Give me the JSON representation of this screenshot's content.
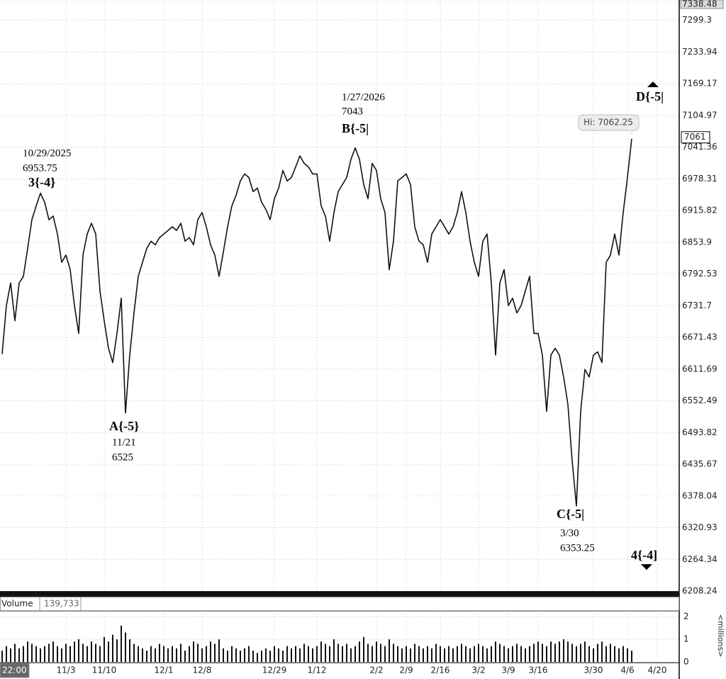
{
  "chart_data": {
    "type": "line",
    "log_scale": true,
    "grid": true,
    "color": "#111111",
    "ylim": [
      6208.24,
      7338.48
    ],
    "yticks": [
      7338.48,
      7299.3,
      7233.94,
      7169.17,
      7104.97,
      7041.36,
      6978.31,
      6915.82,
      6853.9,
      6792.53,
      6731.7,
      6671.43,
      6611.69,
      6552.49,
      6493.82,
      6435.67,
      6378.04,
      6320.93,
      6264.34,
      6208.24
    ],
    "categories": [
      "22:00",
      null,
      null,
      null,
      null,
      null,
      null,
      null,
      null,
      null,
      null,
      null,
      null,
      null,
      null,
      "11/3",
      null,
      null,
      null,
      null,
      null,
      null,
      null,
      null,
      "11/10",
      null,
      null,
      null,
      null,
      null,
      null,
      null,
      null,
      null,
      null,
      null,
      null,
      null,
      "12/1",
      null,
      null,
      null,
      null,
      null,
      null,
      null,
      null,
      "12/8",
      null,
      null,
      null,
      null,
      null,
      null,
      null,
      null,
      null,
      null,
      null,
      null,
      null,
      null,
      null,
      null,
      "12/29",
      null,
      null,
      null,
      null,
      null,
      null,
      null,
      null,
      null,
      "1/12",
      null,
      null,
      null,
      null,
      null,
      null,
      null,
      null,
      null,
      null,
      null,
      null,
      null,
      "2/2",
      null,
      null,
      null,
      null,
      null,
      null,
      "2/9",
      null,
      null,
      null,
      null,
      null,
      null,
      null,
      "2/16",
      null,
      null,
      null,
      null,
      null,
      null,
      null,
      null,
      "3/2",
      null,
      null,
      null,
      null,
      null,
      null,
      "3/9",
      null,
      null,
      null,
      null,
      null,
      null,
      "3/16",
      null,
      null,
      null,
      null,
      null,
      null,
      null,
      null,
      null,
      null,
      null,
      null,
      "3/30",
      null,
      null,
      null,
      null,
      null,
      null,
      null,
      "4/6",
      null,
      null,
      null,
      null,
      null,
      null,
      "4/20",
      null,
      null,
      null,
      null
    ],
    "values": [
      6640,
      6732,
      6775,
      6703,
      6775,
      6788,
      6842,
      6898,
      6925,
      6950,
      6932,
      6898,
      6905,
      6870,
      6815,
      6829,
      6801,
      6732,
      6679,
      6829,
      6870,
      6891,
      6870,
      6760,
      6703,
      6651,
      6624,
      6679,
      6746,
      6530,
      6638,
      6718,
      6788,
      6815,
      6842,
      6856,
      6849,
      6863,
      6870,
      6877,
      6884,
      6877,
      6891,
      6856,
      6863,
      6849,
      6898,
      6912,
      6884,
      6849,
      6829,
      6788,
      6835,
      6884,
      6925,
      6946,
      6974,
      6988,
      6981,
      6953,
      6960,
      6932,
      6918,
      6898,
      6939,
      6960,
      6995,
      6974,
      6981,
      7002,
      7024,
      7009,
      7002,
      6988,
      6988,
      6925,
      6905,
      6856,
      6912,
      6953,
      6967,
      6981,
      7017,
      7040,
      7017,
      6967,
      6939,
      7009,
      6995,
      6939,
      6912,
      6801,
      6856,
      6974,
      6981,
      6988,
      6967,
      6884,
      6856,
      6849,
      6815,
      6870,
      6884,
      6898,
      6884,
      6870,
      6884,
      6912,
      6953,
      6912,
      6856,
      6815,
      6788,
      6856,
      6870,
      6775,
      6638,
      6775,
      6801,
      6732,
      6746,
      6718,
      6732,
      6760,
      6788,
      6679,
      6679,
      6638,
      6533,
      6638,
      6651,
      6638,
      6597,
      6546,
      6442,
      6360,
      6533,
      6611,
      6597,
      6638,
      6644,
      6624,
      6815,
      6829,
      6870,
      6829,
      6912,
      6981,
      7058,
      null,
      null,
      null,
      null,
      null,
      null,
      null,
      null,
      null,
      null
    ],
    "last_price": 7061,
    "high_label": "Hi: 7062.25",
    "annotations": [
      {
        "date": "10/29/2025",
        "price": 6953.75,
        "label": "3{-4}"
      },
      {
        "label": "A{-5}",
        "date": "11/21",
        "price": 6525
      },
      {
        "date": "1/27/2026",
        "price": 7043,
        "label": "B{-5|"
      },
      {
        "label": "C{-5|",
        "date": "3/30",
        "price": 6353.25
      },
      {
        "label": "D{-5|"
      },
      {
        "label": "4{-4]"
      }
    ],
    "volume": {
      "label": "Volume",
      "value_label": "139,733",
      "unit_label": "<millions>",
      "color": "#111111",
      "ylim": [
        0,
        2
      ],
      "yticks": [
        0,
        1,
        2
      ],
      "values": [
        0.5,
        0.7,
        0.6,
        0.8,
        0.6,
        0.7,
        0.9,
        0.8,
        0.7,
        0.6,
        0.7,
        0.8,
        0.9,
        0.7,
        0.6,
        0.8,
        0.7,
        0.9,
        1.0,
        0.8,
        0.7,
        0.9,
        0.8,
        0.7,
        1.1,
        0.9,
        1.2,
        1.0,
        1.6,
        1.3,
        1.0,
        0.8,
        0.7,
        0.6,
        0.5,
        0.7,
        0.6,
        0.8,
        0.7,
        0.6,
        0.7,
        0.6,
        0.8,
        0.5,
        0.7,
        0.9,
        0.8,
        0.6,
        0.7,
        0.9,
        0.8,
        1.0,
        0.6,
        0.5,
        0.7,
        0.6,
        0.5,
        0.6,
        0.7,
        0.5,
        0.4,
        0.5,
        0.6,
        0.5,
        0.7,
        0.6,
        0.5,
        0.7,
        0.6,
        0.7,
        0.6,
        0.8,
        0.7,
        0.6,
        0.7,
        0.9,
        0.8,
        0.7,
        1.0,
        0.8,
        0.7,
        0.8,
        0.6,
        0.7,
        0.9,
        1.1,
        0.8,
        0.7,
        0.9,
        0.8,
        0.7,
        1.0,
        0.8,
        0.7,
        0.6,
        0.7,
        0.6,
        0.8,
        0.7,
        0.6,
        0.7,
        0.6,
        0.8,
        0.7,
        0.6,
        0.7,
        0.6,
        0.7,
        0.8,
        0.7,
        0.6,
        0.7,
        0.8,
        0.7,
        0.6,
        0.7,
        0.9,
        0.8,
        0.7,
        0.6,
        0.7,
        0.8,
        0.7,
        0.6,
        0.7,
        0.8,
        0.9,
        0.8,
        0.7,
        0.9,
        0.8,
        0.9,
        1.0,
        0.9,
        0.8,
        0.7,
        0.8,
        0.9,
        0.7,
        0.6,
        0.8,
        0.9,
        0.7,
        0.8,
        0.7,
        0.6,
        0.7,
        0.6,
        0.5,
        null,
        null,
        null,
        null,
        null,
        null,
        null,
        null,
        null,
        null
      ]
    }
  }
}
